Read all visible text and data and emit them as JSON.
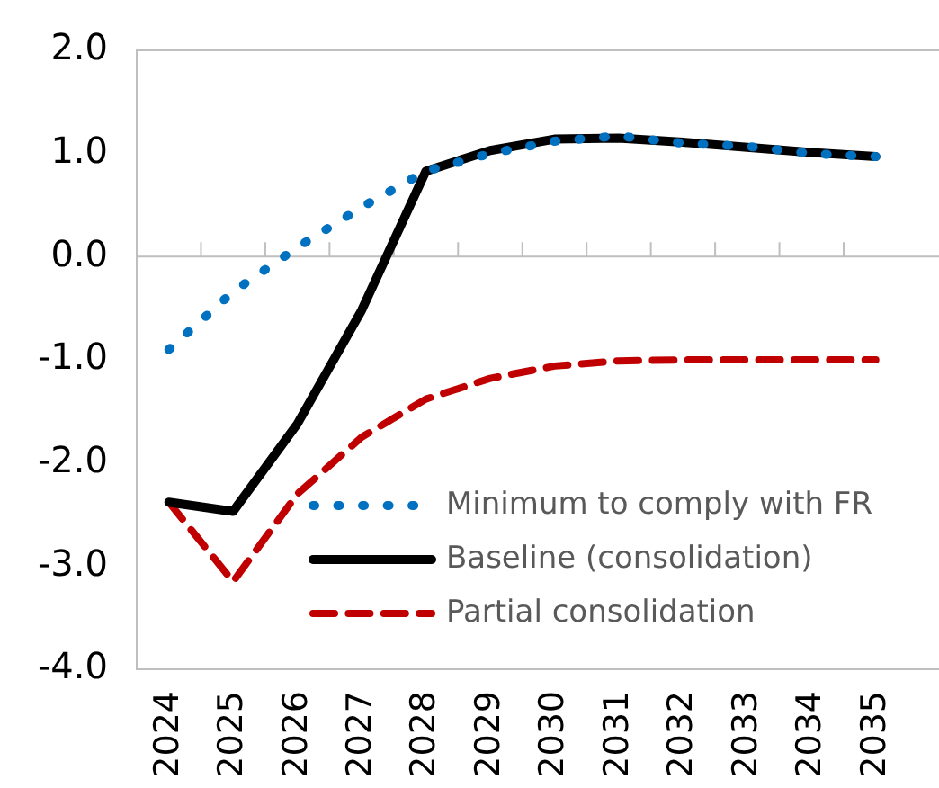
{
  "chart_data": {
    "type": "line",
    "categories": [
      "2024",
      "2025",
      "2026",
      "2027",
      "2028",
      "2029",
      "2030",
      "2031",
      "2032",
      "2033",
      "2034",
      "2035"
    ],
    "series": [
      {
        "name": "Minimum to comply with FR",
        "color": "#0070c0",
        "line_style": "dotted",
        "values": [
          -0.9,
          -0.34,
          0.09,
          0.48,
          0.83,
          1.0,
          1.12,
          1.17,
          1.1,
          1.07,
          1.0,
          0.97
        ]
      },
      {
        "name": "Baseline (consolidation)",
        "color": "#000000",
        "line_style": "solid",
        "values": [
          -2.38,
          -2.47,
          -1.62,
          -0.52,
          0.83,
          1.03,
          1.14,
          1.15,
          1.11,
          1.06,
          1.01,
          0.97
        ]
      },
      {
        "name": "Partial consolidation",
        "color": "#c00000",
        "line_style": "dashed",
        "values": [
          -2.38,
          -3.15,
          -2.3,
          -1.75,
          -1.38,
          -1.18,
          -1.06,
          -1.01,
          -1.0,
          -1.0,
          -1.0,
          -1.0
        ]
      }
    ],
    "ylim": [
      -4,
      2
    ],
    "yticks": [
      {
        "value": -4,
        "label": "-4.0"
      },
      {
        "value": -3,
        "label": "-3.0"
      },
      {
        "value": -2,
        "label": "-2.0"
      },
      {
        "value": -1,
        "label": "-1.0"
      },
      {
        "value": 0,
        "label": "0.0"
      },
      {
        "value": 1,
        "label": "1.0"
      },
      {
        "value": 2,
        "label": "2.0"
      }
    ],
    "ref_lines": [
      {
        "axis": "y",
        "value": 0,
        "color": "#bfbfbf"
      }
    ],
    "grid": false,
    "legend": "bottom right",
    "marker": "none"
  }
}
